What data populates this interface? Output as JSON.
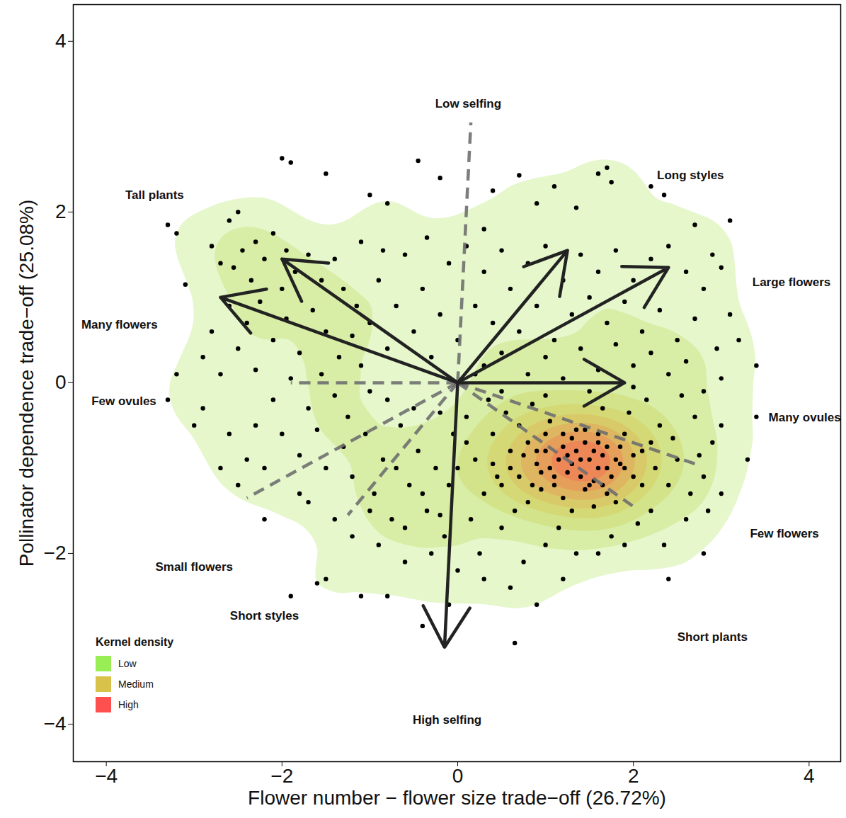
{
  "chart_data": {
    "type": "scatter",
    "x_label": "Flower number − flower size trade−off (26.72%)",
    "y_label": "Pollinator dependence trade−off (25.08%)",
    "xlim": [
      -4.376,
      4.36
    ],
    "ylim": [
      -4.44,
      4.43
    ],
    "xticks": [
      -4,
      -2,
      0,
      2,
      4
    ],
    "yticks": [
      -4,
      -2,
      0,
      2,
      4
    ],
    "color": "#000000",
    "marker": "circle",
    "legend": "bottom-left",
    "legend_title": "Kernel density",
    "legend_items": [
      {
        "label": "Low",
        "color": "#99ee55"
      },
      {
        "label": "Medium",
        "color": "#d8c24a"
      },
      {
        "label": "High",
        "color": "#ff5050"
      }
    ],
    "origin": {
      "x": 0,
      "y": 0
    },
    "loadings": [
      {
        "x": -2.7,
        "y": 1.0,
        "line_style": "solid"
      },
      {
        "x": -2.0,
        "y": 1.45,
        "line_style": "solid"
      },
      {
        "x": 1.25,
        "y": 1.55,
        "line_style": "solid"
      },
      {
        "x": 2.4,
        "y": 1.35,
        "line_style": "solid"
      },
      {
        "x": 1.9,
        "y": 0.0,
        "line_style": "solid"
      },
      {
        "x": -0.15,
        "y": -3.1,
        "line_style": "solid"
      },
      {
        "x": 0.15,
        "y": 3.05,
        "line_style": "dashed"
      },
      {
        "x": -1.9,
        "y": 0.0,
        "line_style": "dashed"
      },
      {
        "x": -1.25,
        "y": -1.55,
        "line_style": "dashed"
      },
      {
        "x": -2.4,
        "y": -1.35,
        "line_style": "dashed"
      },
      {
        "x": 2.7,
        "y": -0.95,
        "line_style": "dashed"
      },
      {
        "x": 2.0,
        "y": -1.45,
        "line_style": "dashed"
      }
    ],
    "annotations": [
      {
        "text": "Tall plants",
        "x": -3.45,
        "y": 2.2
      },
      {
        "text": "Many flowers",
        "x": -3.85,
        "y": 0.68
      },
      {
        "text": "Few ovules",
        "x": -3.8,
        "y": -0.22
      },
      {
        "text": "Small flowers",
        "x": -3.0,
        "y": -2.16
      },
      {
        "text": "Short styles",
        "x": -2.2,
        "y": -2.73
      },
      {
        "text": "High selfing",
        "x": -0.12,
        "y": -3.95
      },
      {
        "text": "Short plants",
        "x": 2.9,
        "y": -2.98
      },
      {
        "text": "Few flowers",
        "x": 3.72,
        "y": -1.77
      },
      {
        "text": "Many ovules",
        "x": 3.95,
        "y": -0.41
      },
      {
        "text": "Large flowers",
        "x": 3.8,
        "y": 1.18
      },
      {
        "text": "Long styles",
        "x": 2.65,
        "y": 2.43
      },
      {
        "text": "Low selfing",
        "x": 0.12,
        "y": 3.27
      }
    ],
    "x": [
      -2.0,
      -1.9,
      -1.5,
      -1.0,
      -0.8,
      -0.45,
      -0.2,
      0.4,
      0.7,
      0.9,
      1.1,
      1.35,
      1.6,
      1.7,
      1.75,
      2.2,
      2.35,
      0.3,
      -1.5,
      -1.6,
      -1.9,
      -1.1,
      -0.8,
      -0.1,
      -0.4,
      0.65,
      0.9,
      2.8,
      3.0,
      3.4,
      3.3,
      3.4,
      3.0,
      3.2,
      -3.3,
      -3.2,
      -3.1,
      -3.2,
      -3.3,
      -2.6,
      -2.5,
      -2.1,
      3.1,
      2.7,
      -1.0,
      -1.2,
      -1.8,
      -2.5,
      -2.2,
      -2.8,
      -3.0,
      -2.3,
      -2.7,
      -2.55,
      -2.45,
      -2.35,
      -2.2,
      -2.0,
      -1.85,
      -1.7,
      -1.55,
      -1.4,
      -1.3,
      -1.15,
      -2.6,
      -2.4,
      -2.25,
      -2.1,
      -1.95,
      -1.8,
      -1.65,
      -1.5,
      -1.35,
      -1.2,
      -2.9,
      -2.7,
      -2.5,
      -2.3,
      -2.1,
      -1.9,
      -1.7,
      -1.55,
      -1.4,
      -1.25,
      -1.1,
      -1.0,
      -0.9,
      -0.8,
      -0.7,
      -0.6,
      -0.5,
      -0.4,
      -0.3,
      -0.2,
      -0.1,
      0.0,
      -2.8,
      -2.3,
      -1.95,
      -1.1,
      -0.85,
      -0.35,
      0.1,
      0.3,
      0.5,
      0.2,
      0.4,
      0.6,
      0.8,
      1.0,
      1.2,
      1.4,
      1.6,
      1.8,
      2.0,
      2.2,
      2.4,
      2.6,
      2.8,
      2.9,
      0.7,
      0.9,
      1.1,
      1.3,
      1.5,
      1.7,
      1.9,
      2.1,
      2.3,
      2.5,
      2.7,
      2.95,
      3.1,
      0.3,
      0.5,
      0.8,
      1.0,
      1.2,
      1.4,
      1.6,
      1.8,
      2.0,
      2.2,
      2.4,
      2.6,
      2.8,
      3.0,
      -2.6,
      -2.4,
      -2.0,
      -1.8,
      -1.6,
      -1.5,
      -1.3,
      -1.2,
      -1.05,
      -0.95,
      -0.85,
      -0.75,
      -0.65,
      -0.55,
      -0.45,
      -0.35,
      -0.25,
      -0.15,
      -0.05,
      -0.9,
      -0.6,
      -0.3,
      -1.4,
      -1.7,
      -2.2,
      -2.7,
      -2.9,
      -0.5,
      -0.8,
      -0.2,
      -1.0,
      0.1,
      0.2,
      0.3,
      0.4,
      0.5,
      0.6,
      0.7,
      0.8,
      0.9,
      1.0,
      1.1,
      1.2,
      1.3,
      1.4,
      1.5,
      1.6,
      1.7,
      1.8,
      1.9,
      2.0,
      2.1,
      2.2,
      2.3,
      2.4,
      2.5,
      2.6,
      2.7,
      2.8,
      2.9,
      3.0,
      0.15,
      0.25,
      0.35,
      0.45,
      0.55,
      0.65,
      0.75,
      0.85,
      0.95,
      1.05,
      1.15,
      1.25,
      1.35,
      1.45,
      1.55,
      1.65,
      1.75,
      1.85,
      1.95,
      2.05,
      2.15,
      2.25,
      2.35,
      2.45,
      2.55,
      2.65,
      2.75,
      2.85,
      1.2,
      1.3,
      1.35,
      1.45,
      1.5,
      1.55,
      1.6,
      1.65,
      1.7,
      1.25,
      1.4,
      1.15,
      1.0,
      1.05,
      0.95,
      1.8,
      1.75,
      1.85,
      1.9,
      2.0,
      1.3,
      1.45,
      1.6,
      1.1,
      0.9,
      0.8,
      0.7,
      0.6,
      0.5,
      0.4,
      1.55,
      1.7,
      1.2,
      0.85,
      1.0,
      2.1,
      2.2,
      1.35,
      0.75,
      1.65,
      0.5,
      1.0,
      1.5,
      2.0,
      0.2,
      -0.7,
      -0.4,
      -0.1,
      -0.6,
      -0.2,
      0.0,
      0.3,
      0.6,
      1.2,
      1.6,
      1.9,
      2.4,
      0.0,
      0.1
    ],
    "y": [
      2.63,
      2.58,
      2.45,
      2.2,
      2.1,
      2.6,
      2.4,
      2.25,
      2.43,
      2.1,
      2.3,
      2.05,
      2.45,
      2.52,
      2.35,
      2.3,
      2.2,
      1.8,
      -2.3,
      -2.35,
      -2.5,
      -2.5,
      -2.5,
      -2.6,
      -2.85,
      -3.05,
      -2.6,
      -2.0,
      -1.3,
      -0.4,
      -0.9,
      0.2,
      1.35,
      0.5,
      -0.2,
      0.1,
      1.15,
      1.75,
      1.85,
      1.9,
      2.0,
      1.75,
      1.9,
      1.85,
      -1.5,
      -1.8,
      -1.3,
      -1.2,
      -1.0,
      0.6,
      -0.5,
      -0.5,
      1.4,
      1.35,
      1.55,
      1.2,
      1.45,
      1.1,
      1.3,
      1.5,
      1.2,
      1.45,
      1.1,
      0.9,
      0.9,
      0.7,
      0.95,
      0.5,
      0.75,
      0.35,
      0.85,
      0.6,
      0.3,
      0.55,
      0.3,
      0.1,
      0.4,
      0.15,
      -0.2,
      0.05,
      -0.3,
      0.1,
      -0.15,
      -0.4,
      0.2,
      0.7,
      1.2,
      0.4,
      0.9,
      1.5,
      0.6,
      1.1,
      0.3,
      0.8,
      1.4,
      0.5,
      1.6,
      1.65,
      1.55,
      1.65,
      1.55,
      1.7,
      1.6,
      1.3,
      1.55,
      0.9,
      0.7,
      1.1,
      1.4,
      1.6,
      1.2,
      1.5,
      1.3,
      1.55,
      1.2,
      1.45,
      1.6,
      1.3,
      1.1,
      1.5,
      0.6,
      0.9,
      0.5,
      0.8,
      1.0,
      0.7,
      0.95,
      0.6,
      0.85,
      0.5,
      0.75,
      0.4,
      0.8,
      0.2,
      0.35,
      0.1,
      0.3,
      0.05,
      0.4,
      0.15,
      0.45,
      0.2,
      0.35,
      0.1,
      0.25,
      -0.1,
      0.05,
      -0.6,
      -0.9,
      -0.6,
      -0.85,
      -0.55,
      -1.0,
      -0.75,
      -1.1,
      -0.6,
      -1.3,
      -0.9,
      -1.6,
      -0.5,
      -1.2,
      -0.8,
      -1.5,
      -1.0,
      -1.8,
      -0.6,
      -1.9,
      -2.1,
      -2.0,
      -1.6,
      -1.4,
      -1.6,
      -1.0,
      -0.3,
      -0.3,
      -0.2,
      -0.35,
      -0.1,
      -0.4,
      -0.9,
      -1.3,
      -0.6,
      -1.7,
      -1.0,
      -0.5,
      -1.4,
      -0.8,
      -1.9,
      -1.1,
      -0.6,
      -1.5,
      -0.9,
      -1.2,
      -0.7,
      -1.0,
      -1.4,
      -0.6,
      -1.1,
      -0.8,
      -1.5,
      -0.5,
      -1.2,
      -0.9,
      -1.6,
      -0.4,
      -1.1,
      -0.7,
      -0.5,
      -1.6,
      -2.0,
      -0.2,
      -1.1,
      -0.35,
      -1.5,
      -2.1,
      -0.25,
      -1.25,
      -0.45,
      -1.7,
      -0.85,
      -2.0,
      -0.55,
      -1.45,
      -0.3,
      -1.8,
      -0.95,
      -0.35,
      -1.65,
      -0.2,
      -1.0,
      -1.9,
      -0.65,
      -0.15,
      -1.3,
      -0.85,
      -1.5,
      -0.75,
      -0.95,
      -0.8,
      -0.7,
      -0.9,
      -0.8,
      -1.0,
      -0.85,
      -0.75,
      -1.05,
      -1.1,
      -0.9,
      -0.8,
      -1.0,
      -1.05,
      -0.9,
      -1.1,
      -0.75,
      -1.0,
      -0.85,
      -0.65,
      -1.25,
      -0.6,
      -1.2,
      -0.95,
      -0.7,
      -1.1,
      -0.8,
      -1.2,
      -0.95,
      -1.15,
      -1.3,
      -1.35,
      -1.2,
      -0.6,
      -1.2,
      -0.7,
      -0.55,
      -0.85,
      -1.2,
      -0.1,
      -0.15,
      -0.1,
      -0.05,
      0.1,
      -1.0,
      -1.3,
      -1.2,
      -1.7,
      -1.55,
      -2.2,
      -2.3,
      -2.4,
      -2.3,
      -2.0,
      -1.9,
      -2.3,
      -1.0,
      -0.7
    ]
  }
}
